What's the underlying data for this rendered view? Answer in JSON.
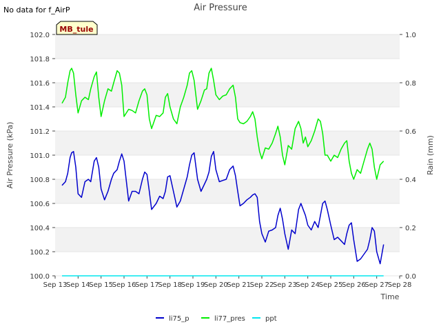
{
  "chart_data": {
    "type": "line",
    "title": "Air Pressure",
    "note": "No data for f_AirP",
    "station_label": "MB_tule",
    "xlabel": "Time",
    "ylabel": "Air Pressure (kPa)",
    "y2label": "Rain (mm)",
    "x_ticks": [
      "Sep 13",
      "Sep 14",
      "Sep 15",
      "Sep 16",
      "Sep 17",
      "Sep 18",
      "Sep 19",
      "Sep 20",
      "Sep 21",
      "Sep 22",
      "Sep 23",
      "Sep 24",
      "Sep 25",
      "Sep 26",
      "Sep 27",
      "Sep 28"
    ],
    "x_range": [
      0,
      15
    ],
    "ylim": [
      100.0,
      102.0
    ],
    "y_ticks": [
      "100.0",
      "100.2",
      "100.4",
      "100.6",
      "100.8",
      "101.0",
      "101.2",
      "101.4",
      "101.6",
      "101.8",
      "102.0"
    ],
    "y2lim": [
      0.0,
      1.0
    ],
    "y2_ticks": [
      "0.0",
      "0.2",
      "0.4",
      "0.6",
      "0.8",
      "1.0"
    ],
    "grid": true,
    "legend_position": "bottom-center",
    "series": [
      {
        "name": "li75_p",
        "color": "#0000cc",
        "axis": "left",
        "x": [
          0.3,
          0.45,
          0.55,
          0.65,
          0.72,
          0.8,
          0.9,
          1.0,
          1.15,
          1.3,
          1.45,
          1.55,
          1.7,
          1.8,
          1.9,
          2.0,
          2.15,
          2.3,
          2.45,
          2.55,
          2.7,
          2.8,
          2.9,
          3.0,
          3.2,
          3.35,
          3.5,
          3.65,
          3.8,
          3.9,
          4.0,
          4.1,
          4.2,
          4.4,
          4.55,
          4.7,
          4.8,
          4.9,
          5.0,
          5.15,
          5.3,
          5.45,
          5.6,
          5.75,
          5.85,
          5.95,
          6.05,
          6.2,
          6.35,
          6.5,
          6.6,
          6.7,
          6.8,
          6.9,
          7.0,
          7.15,
          7.3,
          7.45,
          7.6,
          7.75,
          7.85,
          7.95,
          8.05,
          8.2,
          8.35,
          8.5,
          8.6,
          8.7,
          8.8,
          8.9,
          9.0,
          9.15,
          9.3,
          9.45,
          9.6,
          9.7,
          9.8,
          9.9,
          10.0,
          10.15,
          10.3,
          10.45,
          10.6,
          10.7,
          10.8,
          10.9,
          11.0,
          11.15,
          11.3,
          11.45,
          11.55,
          11.65,
          11.75,
          11.85,
          12.0,
          12.15,
          12.3,
          12.45,
          12.6,
          12.7,
          12.8,
          12.9,
          13.0,
          13.15,
          13.3,
          13.45,
          13.6,
          13.7,
          13.8,
          13.9,
          14.0,
          14.15,
          14.3
        ],
        "values": [
          100.75,
          100.78,
          100.85,
          100.98,
          101.02,
          101.03,
          100.9,
          100.68,
          100.65,
          100.78,
          100.8,
          100.78,
          100.95,
          100.98,
          100.9,
          100.72,
          100.63,
          100.7,
          100.8,
          100.85,
          100.88,
          100.95,
          101.01,
          100.95,
          100.62,
          100.7,
          100.7,
          100.68,
          100.8,
          100.86,
          100.84,
          100.7,
          100.55,
          100.6,
          100.66,
          100.64,
          100.7,
          100.82,
          100.83,
          100.7,
          100.57,
          100.62,
          100.72,
          100.82,
          100.92,
          101.0,
          101.02,
          100.8,
          100.7,
          100.76,
          100.8,
          100.86,
          100.99,
          101.03,
          100.88,
          100.78,
          100.79,
          100.8,
          100.88,
          100.91,
          100.83,
          100.7,
          100.58,
          100.6,
          100.63,
          100.65,
          100.67,
          100.68,
          100.65,
          100.45,
          100.35,
          100.28,
          100.37,
          100.38,
          100.4,
          100.5,
          100.56,
          100.47,
          100.35,
          100.22,
          100.38,
          100.35,
          100.55,
          100.6,
          100.55,
          100.5,
          100.42,
          100.38,
          100.45,
          100.4,
          100.5,
          100.6,
          100.62,
          100.55,
          100.42,
          100.3,
          100.32,
          100.29,
          100.26,
          100.35,
          100.42,
          100.44,
          100.3,
          100.12,
          100.14,
          100.18,
          100.22,
          100.3,
          100.4,
          100.37,
          100.2,
          100.1,
          100.26
        ]
      },
      {
        "name": "li77_pres",
        "color": "#00ee00",
        "axis": "left",
        "x": [
          0.3,
          0.45,
          0.55,
          0.65,
          0.72,
          0.8,
          0.9,
          1.0,
          1.15,
          1.3,
          1.45,
          1.55,
          1.7,
          1.8,
          1.9,
          2.0,
          2.15,
          2.3,
          2.45,
          2.55,
          2.7,
          2.8,
          2.9,
          3.0,
          3.2,
          3.35,
          3.5,
          3.65,
          3.8,
          3.9,
          4.0,
          4.1,
          4.2,
          4.4,
          4.55,
          4.7,
          4.8,
          4.9,
          5.0,
          5.15,
          5.3,
          5.45,
          5.6,
          5.75,
          5.85,
          5.95,
          6.05,
          6.2,
          6.35,
          6.5,
          6.6,
          6.7,
          6.8,
          6.9,
          7.0,
          7.15,
          7.3,
          7.45,
          7.6,
          7.75,
          7.85,
          7.95,
          8.05,
          8.2,
          8.35,
          8.5,
          8.6,
          8.7,
          8.8,
          8.9,
          9.0,
          9.15,
          9.3,
          9.45,
          9.6,
          9.7,
          9.8,
          9.9,
          10.0,
          10.15,
          10.3,
          10.45,
          10.6,
          10.7,
          10.8,
          10.9,
          11.0,
          11.15,
          11.3,
          11.45,
          11.55,
          11.65,
          11.75,
          11.85,
          12.0,
          12.15,
          12.3,
          12.45,
          12.6,
          12.7,
          12.8,
          12.9,
          13.0,
          13.15,
          13.3,
          13.45,
          13.6,
          13.7,
          13.8,
          13.9,
          14.0,
          14.15,
          14.3
        ],
        "values": [
          101.43,
          101.48,
          101.6,
          101.7,
          101.72,
          101.68,
          101.5,
          101.35,
          101.45,
          101.48,
          101.46,
          101.55,
          101.65,
          101.69,
          101.48,
          101.32,
          101.45,
          101.55,
          101.53,
          101.6,
          101.7,
          101.68,
          101.58,
          101.32,
          101.38,
          101.37,
          101.35,
          101.45,
          101.53,
          101.55,
          101.5,
          101.3,
          101.22,
          101.33,
          101.32,
          101.35,
          101.48,
          101.51,
          101.4,
          101.3,
          101.26,
          101.4,
          101.48,
          101.58,
          101.68,
          101.7,
          101.62,
          101.38,
          101.45,
          101.54,
          101.55,
          101.68,
          101.72,
          101.62,
          101.5,
          101.46,
          101.49,
          101.5,
          101.55,
          101.58,
          101.48,
          101.3,
          101.27,
          101.26,
          101.28,
          101.32,
          101.36,
          101.3,
          101.15,
          101.03,
          100.97,
          101.06,
          101.05,
          101.1,
          101.18,
          101.24,
          101.15,
          101.0,
          100.92,
          101.08,
          101.05,
          101.22,
          101.28,
          101.22,
          101.1,
          101.15,
          101.07,
          101.12,
          101.2,
          101.3,
          101.28,
          101.18,
          101.0,
          101.0,
          100.95,
          101.0,
          100.98,
          101.05,
          101.1,
          101.12,
          100.95,
          100.85,
          100.8,
          100.88,
          100.85,
          100.95,
          101.05,
          101.1,
          101.05,
          100.9,
          100.8,
          100.92,
          100.95
        ]
      },
      {
        "name": "ppt",
        "color": "#00e5ee",
        "axis": "right",
        "x": [
          0.3,
          14.3
        ],
        "values": [
          0.0,
          0.0
        ]
      }
    ]
  }
}
